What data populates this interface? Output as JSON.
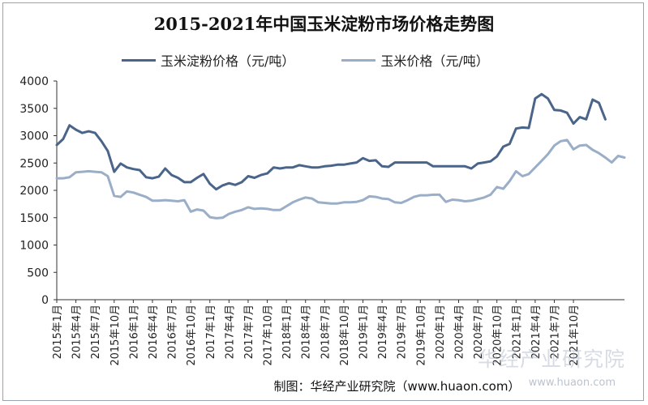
{
  "chart_data": {
    "type": "line",
    "title": "2015-2021年中国玉米淀粉市场价格走势图",
    "ylim": [
      0,
      4000
    ],
    "yticks": [
      0,
      500,
      1000,
      1500,
      2000,
      2500,
      3000,
      3500,
      4000
    ],
    "x_tick_labels": [
      "2015年1月",
      "2015年4月",
      "2015年7月",
      "2015年10月",
      "2016年1月",
      "2016年4月",
      "2016年7月",
      "2016年10月",
      "2017年1月",
      "2017年4月",
      "2017年7月",
      "2017年10月",
      "2018年1月",
      "2018年4月",
      "2018年7月",
      "2018年10月",
      "2019年1月",
      "2019年4月",
      "2019年7月",
      "2019年10月",
      "2020年1月",
      "2020年4月",
      "2020年7月",
      "2020年10月",
      "2021年1月",
      "2021年4月",
      "2021年7月",
      "2021年10月"
    ],
    "legend_position": "top",
    "series": [
      {
        "name": "玉米淀粉价格（元/吨）",
        "color": "#4a6589",
        "values": [
          2830,
          2940,
          3190,
          3110,
          3050,
          3080,
          3050,
          2900,
          2720,
          2340,
          2490,
          2420,
          2390,
          2370,
          2240,
          2220,
          2250,
          2400,
          2280,
          2230,
          2150,
          2150,
          2230,
          2300,
          2120,
          2020,
          2090,
          2130,
          2100,
          2150,
          2260,
          2230,
          2280,
          2310,
          2420,
          2400,
          2420,
          2420,
          2460,
          2440,
          2420,
          2420,
          2440,
          2450,
          2470,
          2470,
          2490,
          2510,
          2590,
          2540,
          2550,
          2440,
          2430,
          2510,
          2510,
          2510,
          2510,
          2510,
          2510,
          2440,
          2440,
          2440,
          2440,
          2440,
          2440,
          2400,
          2490,
          2510,
          2530,
          2620,
          2800,
          2850,
          3130,
          3150,
          3140,
          3680,
          3760,
          3680,
          3470,
          3460,
          3420,
          3220,
          3340,
          3300,
          3660,
          3600,
          3300
        ]
      },
      {
        "name": "玉米价格（元/吨）",
        "color": "#9aaec8",
        "values": [
          2220,
          2220,
          2240,
          2330,
          2340,
          2350,
          2340,
          2330,
          2260,
          1900,
          1880,
          1980,
          1960,
          1920,
          1880,
          1810,
          1810,
          1820,
          1810,
          1800,
          1820,
          1610,
          1650,
          1630,
          1510,
          1490,
          1500,
          1570,
          1610,
          1640,
          1690,
          1660,
          1670,
          1660,
          1640,
          1640,
          1710,
          1780,
          1830,
          1870,
          1850,
          1780,
          1770,
          1760,
          1760,
          1780,
          1780,
          1790,
          1820,
          1890,
          1880,
          1850,
          1840,
          1780,
          1770,
          1820,
          1880,
          1910,
          1910,
          1920,
          1920,
          1790,
          1830,
          1820,
          1800,
          1810,
          1840,
          1870,
          1920,
          2060,
          2030,
          2170,
          2350,
          2260,
          2300,
          2420,
          2540,
          2660,
          2820,
          2900,
          2920,
          2750,
          2820,
          2830,
          2740,
          2680,
          2600,
          2510,
          2630,
          2600
        ]
      }
    ]
  },
  "source_text": "制图：华经产业研究院（www.huaon.com）",
  "watermark": {
    "main": "华经产业研究院",
    "url": "www.huaon.com"
  },
  "colors": {
    "axis": "#333333",
    "frame": "#9aa3b0"
  }
}
